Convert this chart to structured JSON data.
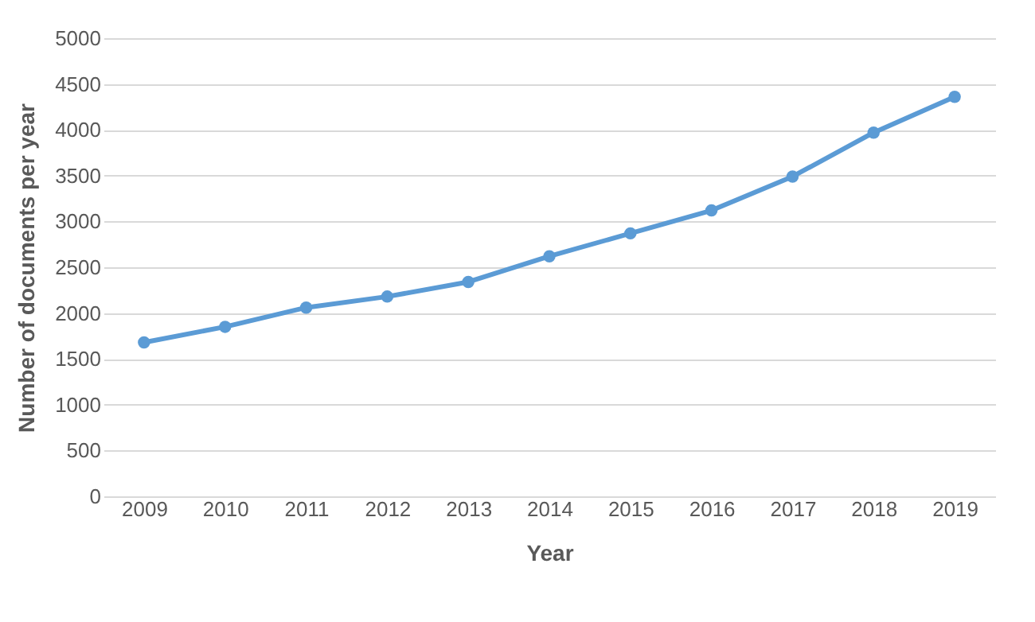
{
  "chart_data": {
    "type": "line",
    "xlabel": "Year",
    "ylabel": "Number of documents per year",
    "categories": [
      "2009",
      "2010",
      "2011",
      "2012",
      "2013",
      "2014",
      "2015",
      "2016",
      "2017",
      "2018",
      "2019"
    ],
    "series": [
      {
        "color": "#5b9bd5",
        "values": [
          1680,
          1850,
          2060,
          2180,
          2340,
          2620,
          2870,
          3120,
          3490,
          3970,
          4360
        ]
      }
    ],
    "ylim": [
      0,
      5000
    ],
    "yticks": [
      0,
      500,
      1000,
      1500,
      2000,
      2500,
      3000,
      3500,
      4000,
      4500,
      5000
    ],
    "grid": "y",
    "marker": "circle",
    "line_style": "solid",
    "legend": false
  }
}
